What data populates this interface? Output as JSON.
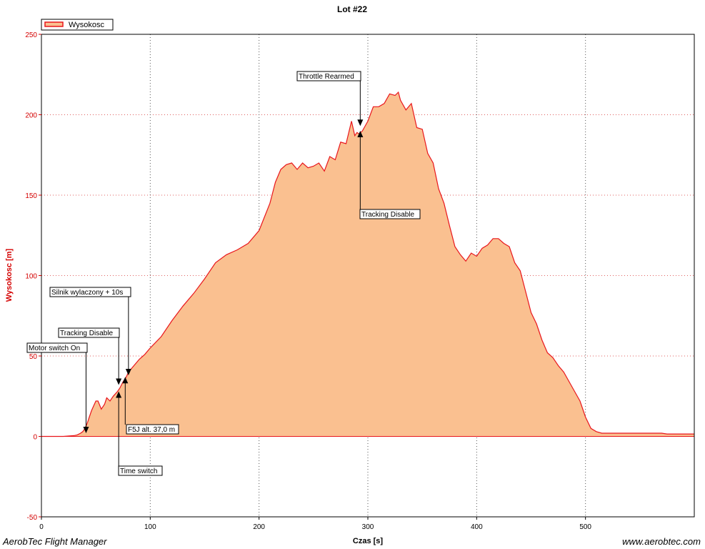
{
  "chart_data": {
    "type": "area",
    "title": "Lot #22",
    "xlabel": "Czas [s]",
    "ylabel": "Wysokosc [m]",
    "xlim": [
      0,
      600
    ],
    "ylim": [
      -50,
      250
    ],
    "xticks": [
      "0",
      "100",
      "200",
      "300",
      "400",
      "500"
    ],
    "yticks": [
      "-50",
      "0",
      "50",
      "100",
      "150",
      "200",
      "250"
    ],
    "grid": true,
    "legend_position": "top-left",
    "series": [
      {
        "name": "Wysokosc",
        "line_color": "#e8161c",
        "fill_color": "#fac090",
        "x": [
          0,
          10,
          20,
          30,
          33,
          36,
          38,
          40,
          42,
          44,
          46,
          48,
          50,
          52,
          55,
          58,
          60,
          63,
          66,
          70,
          72,
          75,
          78,
          80,
          85,
          90,
          95,
          100,
          110,
          120,
          130,
          140,
          150,
          160,
          170,
          180,
          190,
          200,
          210,
          215,
          220,
          225,
          230,
          235,
          240,
          245,
          250,
          255,
          260,
          265,
          270,
          275,
          280,
          285,
          288,
          290,
          292,
          295,
          300,
          305,
          310,
          315,
          320,
          325,
          328,
          330,
          335,
          340,
          345,
          350,
          355,
          360,
          365,
          370,
          375,
          380,
          385,
          390,
          395,
          400,
          405,
          410,
          415,
          420,
          425,
          430,
          435,
          440,
          445,
          450,
          455,
          460,
          465,
          470,
          475,
          480,
          485,
          490,
          495,
          500,
          505,
          510,
          515,
          520,
          525,
          530,
          535,
          540,
          545,
          550,
          555,
          560,
          565,
          570,
          575,
          580,
          590,
          600
        ],
        "y": [
          0,
          0,
          0,
          0.5,
          1,
          2,
          3,
          5,
          8,
          12,
          16,
          19,
          22,
          22,
          17,
          20,
          24,
          22,
          25,
          28,
          30,
          34,
          37,
          40,
          44,
          48,
          51,
          55,
          62,
          72,
          81,
          89,
          98,
          108,
          113,
          116,
          120,
          128,
          145,
          158,
          166,
          169,
          170,
          166,
          170,
          167,
          168,
          170,
          165,
          174,
          172,
          183,
          182,
          196,
          187,
          189,
          188,
          190,
          196,
          205,
          205,
          207,
          213,
          212,
          214,
          209,
          203,
          207,
          192,
          191,
          176,
          170,
          154,
          145,
          131,
          118,
          113,
          109,
          114,
          112,
          117,
          119,
          123,
          123,
          120,
          118,
          108,
          103,
          90,
          77,
          70,
          60,
          52,
          49,
          44,
          40,
          34,
          28,
          22,
          12,
          5,
          3,
          2,
          2,
          2,
          2,
          2,
          2,
          2,
          2,
          2,
          2,
          2,
          2,
          1.5,
          1.5,
          1.5,
          1.5
        ]
      }
    ],
    "annotations": [
      {
        "label": "Motor switch On",
        "x": 41,
        "y": 2
      },
      {
        "label": "Tracking Disable",
        "x": 71,
        "y": 32
      },
      {
        "label": "Silnik wylaczony + 10s",
        "x": 80,
        "y": 38
      },
      {
        "label": "F5J alt. 37,0 m",
        "x": 77,
        "y": 37
      },
      {
        "label": "Time switch",
        "x": 71,
        "y": 28
      },
      {
        "label": "Throttle Rearmed",
        "x": 293,
        "y": 193
      },
      {
        "label": "Tracking Disable",
        "x": 293,
        "y": 190
      }
    ]
  },
  "footer": {
    "left": "AerobTec Flight Manager",
    "right": "www.aerobtec.com"
  }
}
